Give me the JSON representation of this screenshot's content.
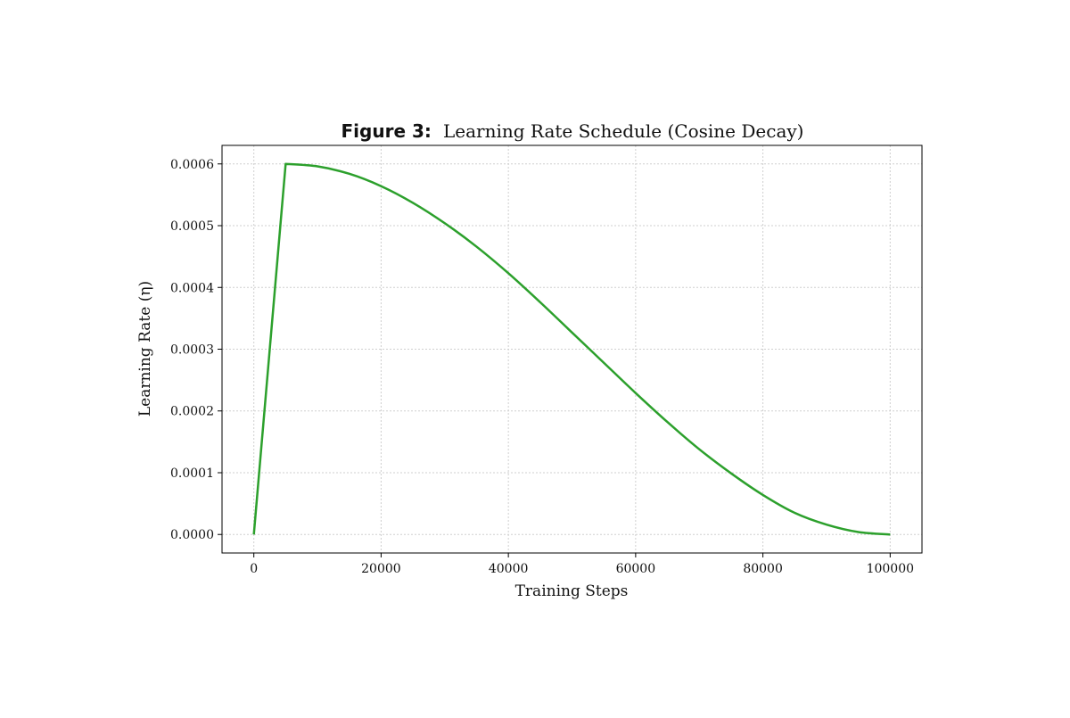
{
  "chart_data": {
    "type": "line",
    "title_prefix": "Figure 3:",
    "title_main": "Learning Rate Schedule (Cosine Decay)",
    "xlabel": "Training Steps",
    "ylabel": "Learning Rate (η)",
    "xlim": [
      -5000,
      105000
    ],
    "ylim": [
      -3e-05,
      0.00063
    ],
    "x_ticks": [
      0,
      20000,
      40000,
      60000,
      80000,
      100000
    ],
    "x_tick_labels": [
      "0",
      "20000",
      "40000",
      "60000",
      "80000",
      "100000"
    ],
    "y_ticks": [
      0.0,
      0.0001,
      0.0002,
      0.0003,
      0.0004,
      0.0005,
      0.0006
    ],
    "y_tick_labels": [
      "0.0000",
      "0.0001",
      "0.0002",
      "0.0003",
      "0.0004",
      "0.0005",
      "0.0006"
    ],
    "grid": true,
    "series": [
      {
        "color": "#2ca02c",
        "x": [
          0,
          5000,
          10000,
          15000,
          20000,
          25000,
          30000,
          35000,
          40000,
          45000,
          50000,
          55000,
          60000,
          65000,
          70000,
          75000,
          80000,
          85000,
          90000,
          95000,
          100000
        ],
        "y": [
          0.0,
          0.0006,
          0.000596,
          0.000584,
          0.000564,
          0.000537,
          0.000504,
          0.000466,
          0.000423,
          0.000376,
          0.000327,
          0.000278,
          0.000229,
          0.000182,
          0.000138,
          9.9e-05,
          6.4e-05,
          3.5e-05,
          1.6e-05,
          4e-06,
          0.0
        ]
      }
    ]
  }
}
